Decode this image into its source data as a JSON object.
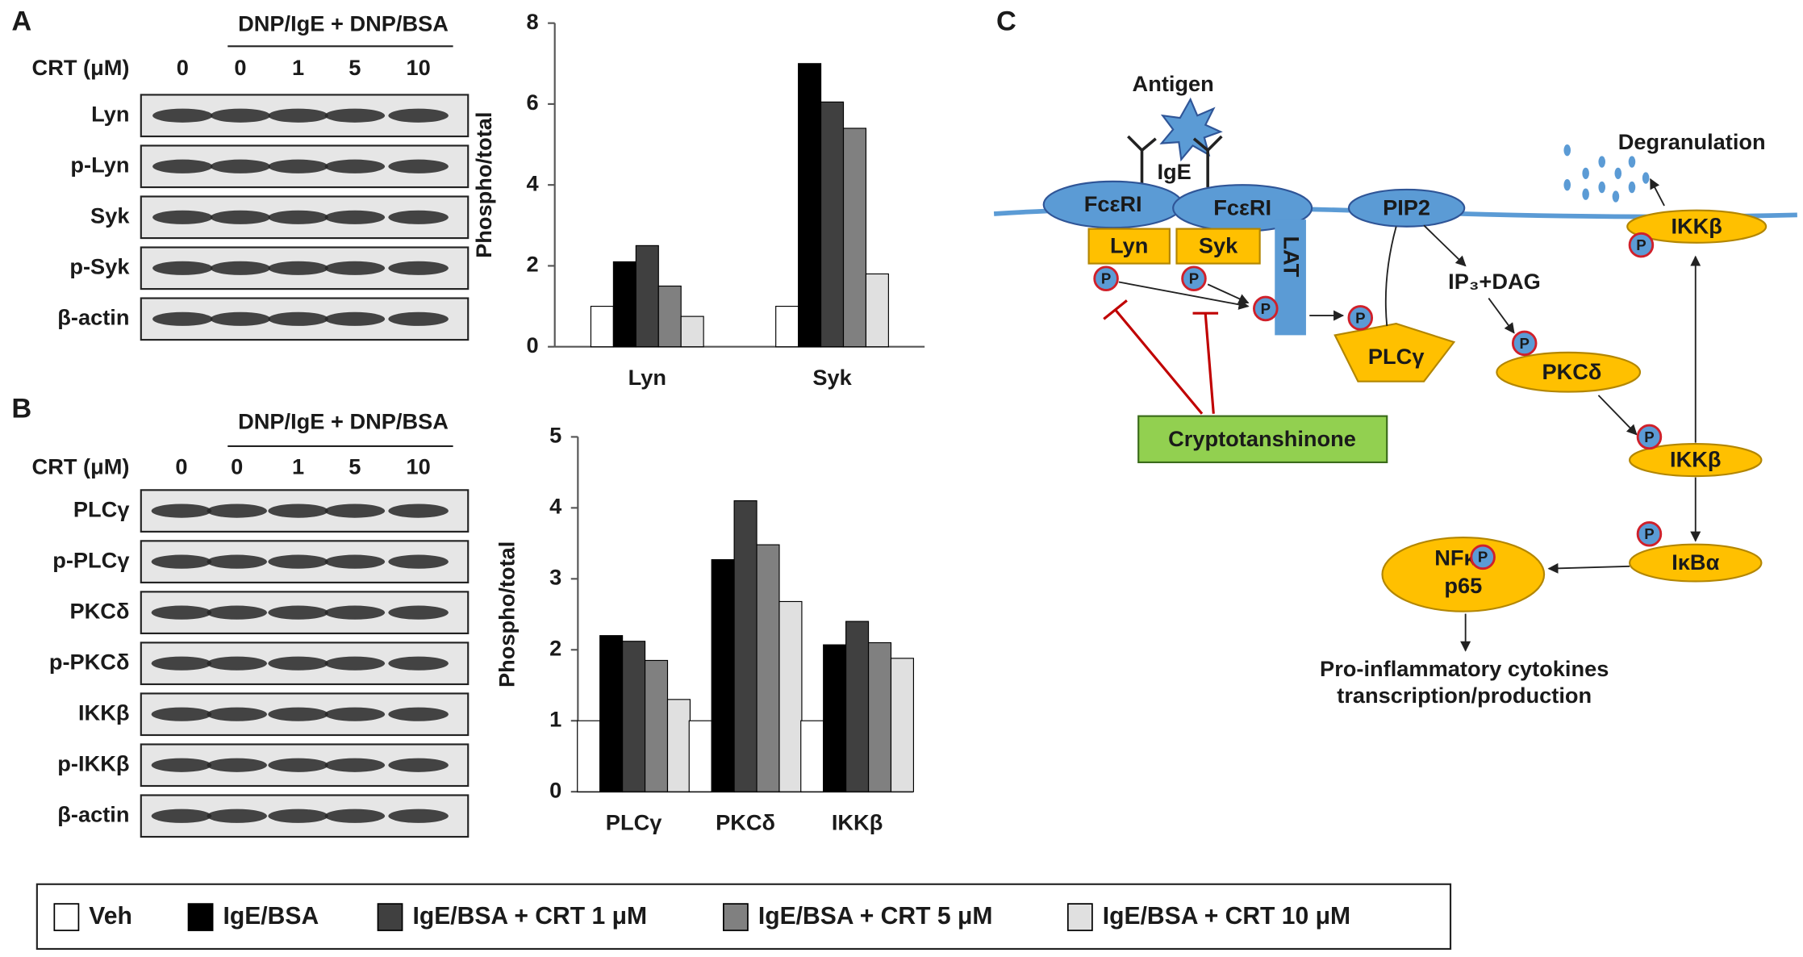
{
  "panel_labels": [
    "A",
    "B",
    "C"
  ],
  "blots": [
    {
      "treatment": "DNP/IgE + DNP/BSA",
      "dose_label": "CRT (μM)",
      "lanes": [
        "0",
        "0",
        "1",
        "5",
        "10"
      ],
      "rows": [
        "Lyn",
        "p-Lyn",
        "Syk",
        "p-Syk",
        "β-actin"
      ]
    },
    {
      "treatment": "DNP/IgE + DNP/BSA",
      "dose_label": "CRT (μM)",
      "lanes": [
        "0",
        "0",
        "1",
        "5",
        "10"
      ],
      "rows": [
        "PLCγ",
        "p-PLCγ",
        "PKCδ",
        "p-PKCδ",
        "IKKβ",
        "p-IKKβ",
        "β-actin"
      ]
    }
  ],
  "chart_data": [
    {
      "type": "bar",
      "ylabel": "Phospho/total",
      "categories": [
        "Lyn",
        "Syk"
      ],
      "series": [
        {
          "name": "Veh",
          "color": "#ffffff",
          "values": [
            1,
            1
          ]
        },
        {
          "name": "IgE/BSA",
          "color": "#000000",
          "values": [
            2.1,
            7.0
          ]
        },
        {
          "name": "IgE/BSA + CRT 1 μM",
          "color": "#404040",
          "values": [
            2.5,
            6.05
          ]
        },
        {
          "name": "IgE/BSA + CRT 5 μM",
          "color": "#808080",
          "values": [
            1.5,
            5.4
          ]
        },
        {
          "name": "IgE/BSA + CRT 10 μM",
          "color": "#e0e0e0",
          "values": [
            0.75,
            1.8
          ]
        }
      ],
      "ylim": [
        0,
        8
      ],
      "yticks": [
        0,
        2,
        4,
        6,
        8
      ],
      "grid": false
    },
    {
      "type": "bar",
      "ylabel": "Phospho/total",
      "categories": [
        "PLCγ",
        "PKCδ",
        "IKKβ"
      ],
      "series": [
        {
          "color": "#ffffff",
          "values": [
            1,
            1,
            1
          ]
        },
        {
          "color": "#000000",
          "values": [
            2.2,
            3.27,
            2.07
          ]
        },
        {
          "color": "#404040",
          "values": [
            2.12,
            4.1,
            2.4
          ]
        },
        {
          "color": "#808080",
          "values": [
            1.85,
            3.48,
            2.1
          ]
        },
        {
          "color": "#e0e0e0",
          "values": [
            1.3,
            2.68,
            1.88
          ]
        }
      ],
      "ylim": [
        0,
        5
      ],
      "yticks": [
        0,
        1,
        2,
        3,
        4,
        5
      ],
      "grid": false
    }
  ],
  "diagram": {
    "antigen": "Antigen",
    "ige": "IgE",
    "receptor": "FcεRI",
    "lyn": "Lyn",
    "syk": "Syk",
    "lat": "LAT",
    "pip2": "PIP2",
    "second_messengers": "IP₃+DAG",
    "plc": "PLCγ",
    "pkc": "PKCδ",
    "ikk": "IKKβ",
    "ikba": "IκBα",
    "nfkb": [
      "NFκB",
      "p65"
    ],
    "degranulation": "Degranulation",
    "inhibitor": "Cryptotanshinone",
    "outcome": [
      "Pro-inflammatory cytokines",
      "transcription/production"
    ],
    "phospho": "P"
  }
}
